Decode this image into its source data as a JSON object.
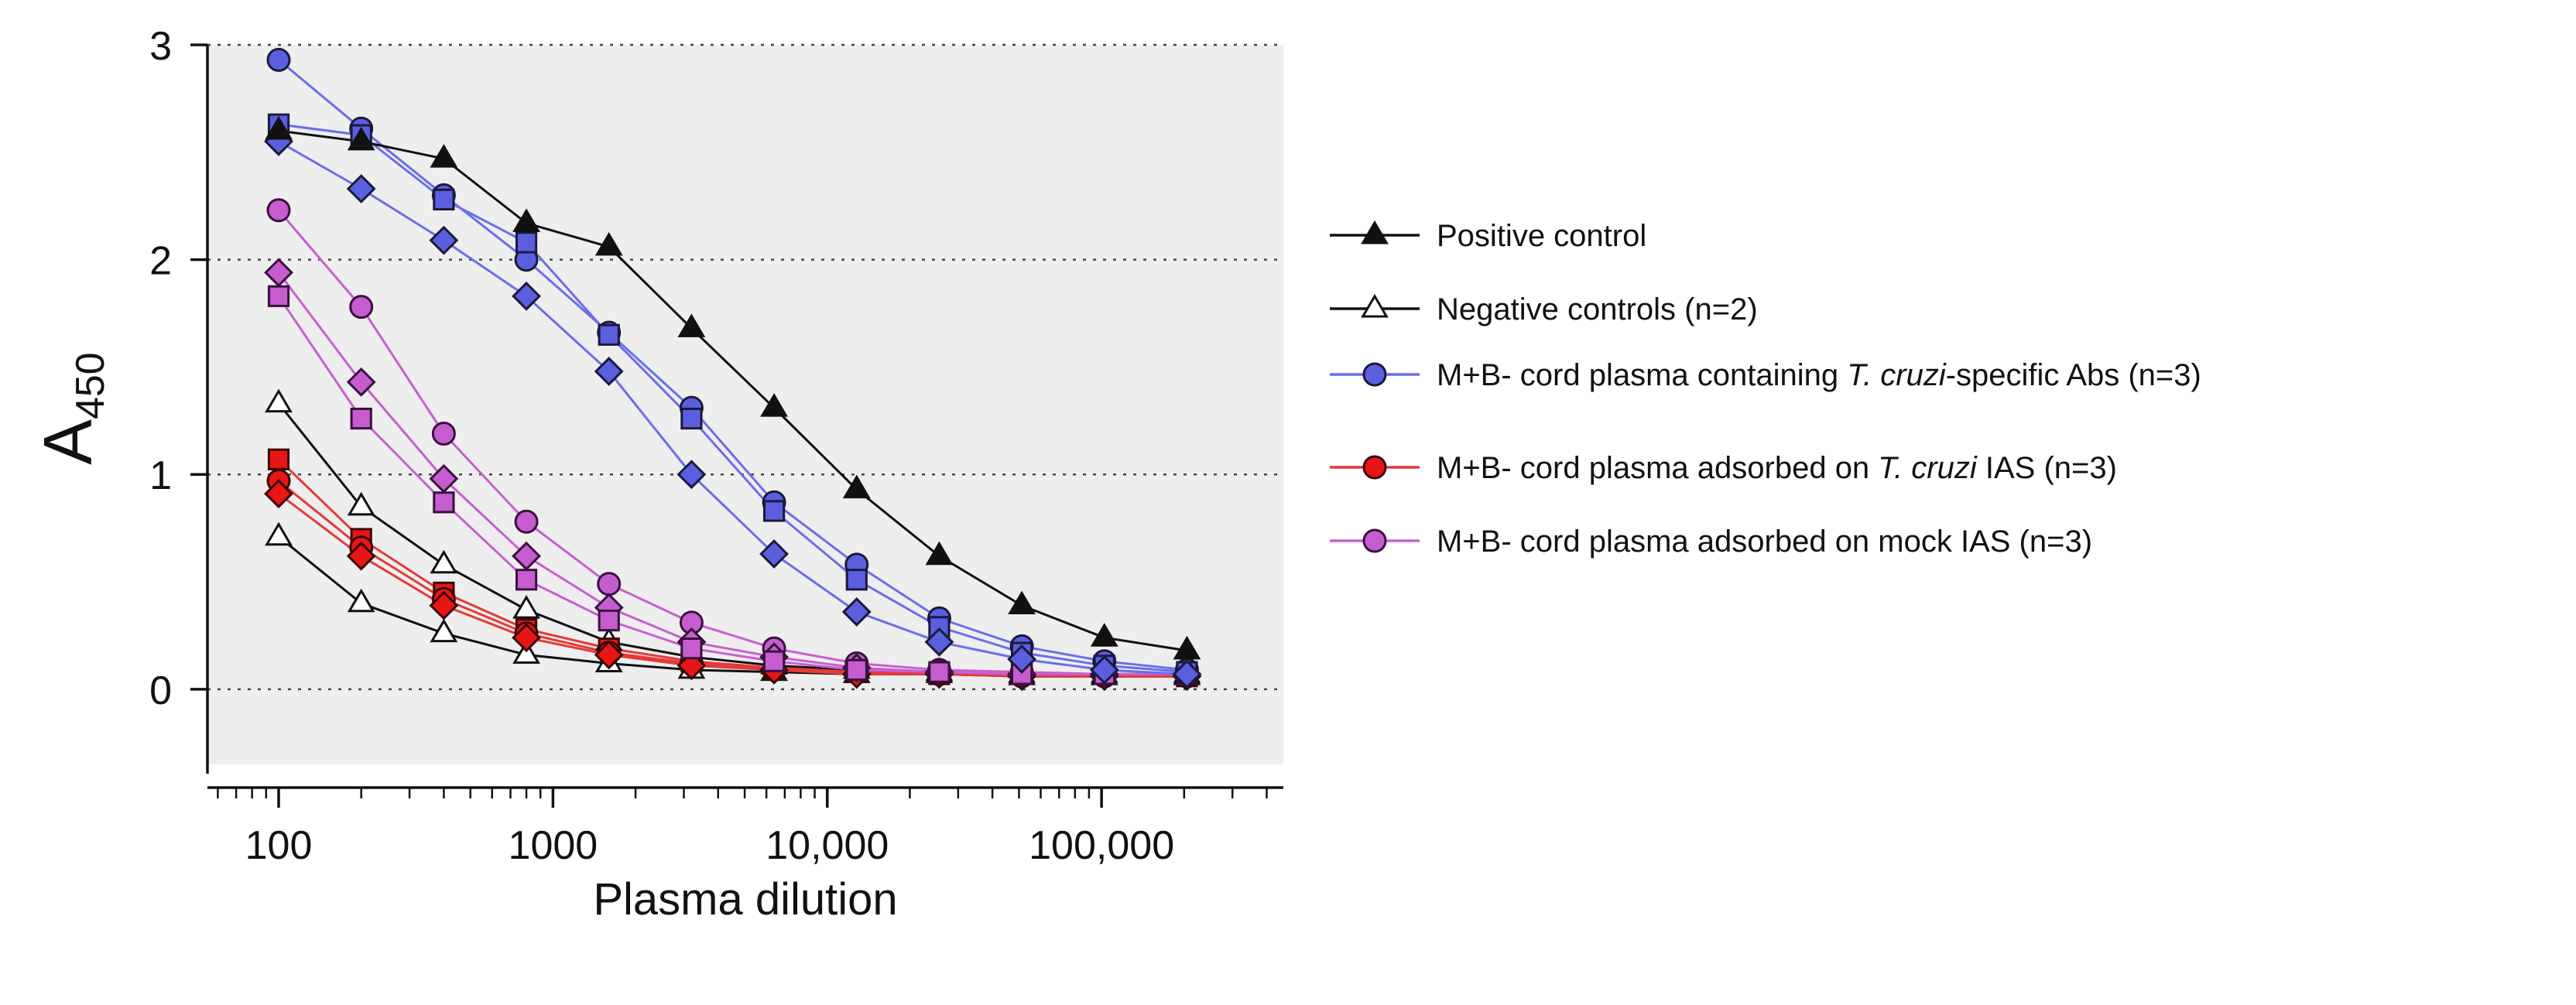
{
  "chart_data": {
    "type": "line",
    "xscale": "log",
    "xlabel": "Plasma dilution",
    "ylabel_main": "A",
    "ylabel_sub": "450",
    "ylim": [
      -0.35,
      3
    ],
    "xlim": [
      55,
      460000
    ],
    "yticks": [
      0,
      1,
      2,
      3
    ],
    "ytick_labels": [
      "0",
      "1",
      "2",
      "3"
    ],
    "xticks": [
      100,
      1000,
      10000,
      100000
    ],
    "xtick_labels": [
      "100",
      "1000",
      "10,000",
      "100,000"
    ],
    "grid": "dotted horizontal at y ticks",
    "legend_position": "right",
    "x": [
      100,
      200,
      400,
      800,
      1600,
      3200,
      6400,
      12800,
      25600,
      51200,
      102400,
      204800
    ],
    "groups": [
      {
        "name": "Positive control",
        "label_parts": [
          "Positive control"
        ],
        "line_color": "#111111",
        "fill": "#111111",
        "edge": "#111111",
        "legend_marker": "triangle",
        "series": [
          {
            "marker": "triangle",
            "values": [
              2.6,
              2.55,
              2.47,
              2.17,
              2.06,
              1.68,
              1.31,
              0.93,
              0.62,
              0.39,
              0.24,
              0.18
            ]
          }
        ]
      },
      {
        "name": "Negative controls (n=2)",
        "label_parts": [
          "Negative controls (n=2)"
        ],
        "line_color": "#111111",
        "fill": "#ffffff",
        "edge": "#111111",
        "legend_marker": "triangle",
        "series": [
          {
            "marker": "triangle",
            "values": [
              1.33,
              0.85,
              0.58,
              0.37,
              0.22,
              0.15,
              0.11,
              0.09,
              0.08,
              0.07,
              0.07,
              0.07
            ]
          },
          {
            "marker": "triangle",
            "values": [
              0.71,
              0.4,
              0.26,
              0.16,
              0.12,
              0.09,
              0.08,
              0.07,
              0.07,
              0.06,
              0.06,
              0.06
            ]
          }
        ]
      },
      {
        "name": "M+B- cord plasma containing T. cruzi-specific Abs (n=3)",
        "label_parts": [
          "M+B- cord plasma containing ",
          "T. cruzi",
          "-specific Abs (n=3)"
        ],
        "line_color": "#6a6ee8",
        "fill": "#5a5fe0",
        "edge": "#1a1a3a",
        "legend_marker": "circle",
        "series": [
          {
            "marker": "circle",
            "values": [
              2.93,
              2.61,
              2.3,
              2.0,
              1.66,
              1.31,
              0.87,
              0.58,
              0.33,
              0.2,
              0.13,
              0.09
            ]
          },
          {
            "marker": "square",
            "values": [
              2.63,
              2.58,
              2.28,
              2.08,
              1.65,
              1.26,
              0.83,
              0.51,
              0.29,
              0.17,
              0.11,
              0.08
            ]
          },
          {
            "marker": "diamond",
            "values": [
              2.55,
              2.33,
              2.09,
              1.83,
              1.48,
              1.0,
              0.63,
              0.36,
              0.22,
              0.14,
              0.09,
              0.07
            ]
          }
        ]
      },
      {
        "name": "M+B- cord plasma adsorbed on T. cruzi IAS (n=3)",
        "label_parts": [
          "M+B- cord plasma adsorbed on ",
          "T. cruzi",
          " IAS (n=3)"
        ],
        "line_color": "#e33a3a",
        "fill": "#e81515",
        "edge": "#3a0808",
        "legend_marker": "circle",
        "series": [
          {
            "marker": "square",
            "values": [
              1.07,
              0.7,
              0.45,
              0.28,
              0.19,
              0.13,
              0.1,
              0.08,
              0.07,
              0.07,
              0.07,
              0.06
            ]
          },
          {
            "marker": "circle",
            "values": [
              0.97,
              0.66,
              0.42,
              0.26,
              0.17,
              0.12,
              0.09,
              0.08,
              0.07,
              0.06,
              0.06,
              0.06
            ]
          },
          {
            "marker": "diamond",
            "values": [
              0.91,
              0.62,
              0.39,
              0.24,
              0.16,
              0.11,
              0.09,
              0.07,
              0.07,
              0.06,
              0.06,
              0.06
            ]
          }
        ]
      },
      {
        "name": "M+B- cord plasma adsorbed on mock IAS (n=3)",
        "label_parts": [
          "M+B- cord plasma adsorbed on mock IAS (n=3)"
        ],
        "line_color": "#c65fd0",
        "fill": "#c55dcf",
        "edge": "#3a103e",
        "legend_marker": "circle",
        "series": [
          {
            "marker": "circle",
            "values": [
              2.23,
              1.78,
              1.19,
              0.78,
              0.49,
              0.31,
              0.19,
              0.12,
              0.09,
              0.08,
              0.07,
              0.07
            ]
          },
          {
            "marker": "diamond",
            "values": [
              1.94,
              1.43,
              0.98,
              0.62,
              0.38,
              0.22,
              0.15,
              0.1,
              0.08,
              0.07,
              0.07,
              0.07
            ]
          },
          {
            "marker": "square",
            "values": [
              1.83,
              1.26,
              0.87,
              0.51,
              0.32,
              0.19,
              0.13,
              0.09,
              0.08,
              0.07,
              0.07,
              0.07
            ]
          }
        ]
      }
    ]
  }
}
